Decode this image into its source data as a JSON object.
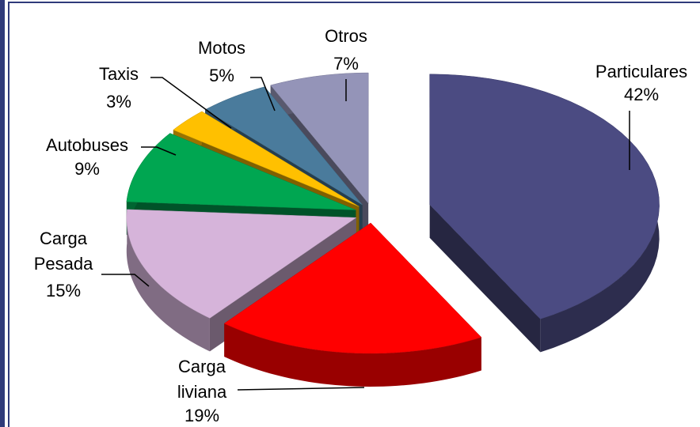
{
  "chart_data": {
    "type": "pie",
    "categories": [
      "Particulares",
      "Carga liviana",
      "Carga Pesada",
      "Autobuses",
      "Taxis",
      "Motos",
      "Otros"
    ],
    "values": [
      42,
      19,
      15,
      9,
      3,
      5,
      7
    ],
    "value_labels": [
      "42%",
      "19%",
      "15%",
      "9%",
      "3%",
      "5%",
      "7%"
    ],
    "colors": [
      "#4b4b82",
      "#ff0000",
      "#d6b4da",
      "#00a651",
      "#ffc000",
      "#4a7b9c",
      "#9494b8"
    ]
  }
}
